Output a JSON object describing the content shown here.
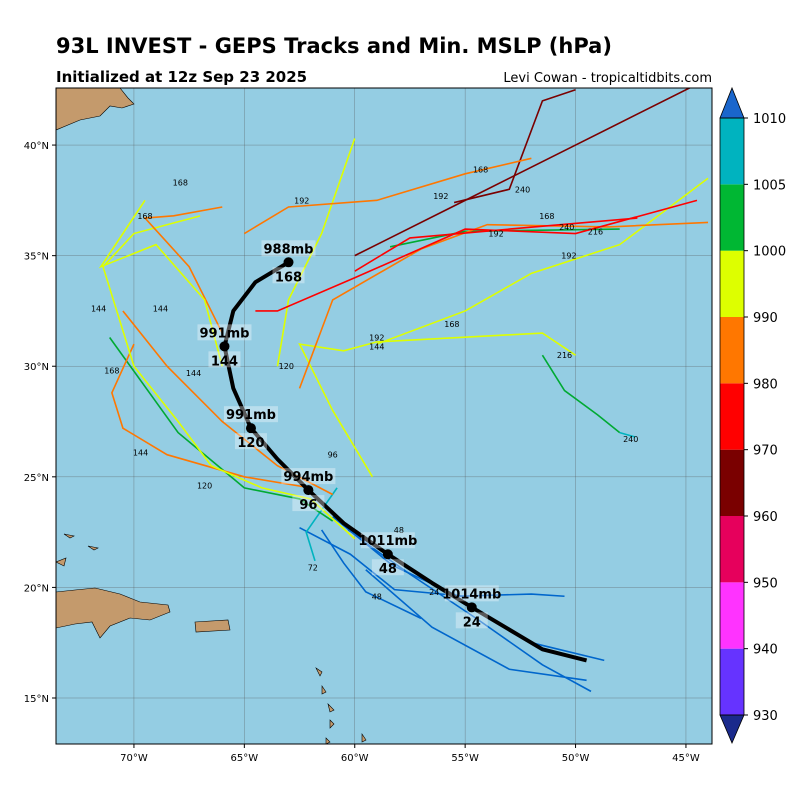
{
  "chart_data": {
    "type": "map",
    "title": "93L INVEST - GEPS Tracks and Min. MSLP (hPa)",
    "subtitle": "Initialized at 12z Sep 23 2025",
    "credit": "Levi Cowan - tropicaltidbits.com",
    "xlim": [
      -73.53,
      -43.82
    ],
    "ylim": [
      12.92,
      42.58
    ],
    "xticks": [
      {
        "value": -70,
        "label": "70°W"
      },
      {
        "value": -65,
        "label": "65°W"
      },
      {
        "value": -60,
        "label": "60°W"
      },
      {
        "value": -55,
        "label": "55°W"
      },
      {
        "value": -50,
        "label": "50°W"
      },
      {
        "value": -45,
        "label": "45°W"
      }
    ],
    "yticks": [
      {
        "value": 15,
        "label": "15°N"
      },
      {
        "value": 20,
        "label": "20°N"
      },
      {
        "value": 25,
        "label": "25°N"
      },
      {
        "value": 30,
        "label": "30°N"
      },
      {
        "value": 35,
        "label": "35°N"
      },
      {
        "value": 40,
        "label": "40°N"
      }
    ],
    "grid": true,
    "colorbar": {
      "bounds": [
        930,
        940,
        950,
        960,
        970,
        980,
        990,
        1000,
        1005,
        1010
      ],
      "colors": [
        "#6633ff",
        "#ff33ff",
        "#e6005c",
        "#7a0000",
        "#ff0000",
        "#ff7700",
        "#ddff00",
        "#00b733",
        "#00b3bf"
      ],
      "under_color": "#1a2a8c",
      "over_color": "#1a66cc",
      "ticks": [
        930,
        940,
        950,
        960,
        970,
        980,
        990,
        1000,
        1005,
        1010
      ]
    },
    "tracks": [
      {
        "color": "#0066cc",
        "lon": [
          -49.3,
          -51.5,
          -54.5,
          -57.5,
          -59.5
        ],
        "lat": [
          15.3,
          16.5,
          18.6,
          20.6,
          22.0
        ]
      },
      {
        "color": "#0066cc",
        "lon": [
          -48.7,
          -52,
          -55,
          -58,
          -60.3
        ],
        "lat": [
          16.7,
          17.5,
          19.3,
          21.2,
          22.6
        ]
      },
      {
        "color": "#0066cc",
        "lon": [
          -50.5,
          -52,
          -55.3,
          -58.3,
          -61
        ],
        "lat": [
          19.6,
          19.7,
          19.6,
          21.0,
          23.2
        ]
      },
      {
        "color": "#0066cc",
        "lon": [
          -49.5,
          -53,
          -56.5,
          -59.5
        ],
        "lat": [
          15.8,
          16.3,
          18.2,
          20.8
        ]
      },
      {
        "color": "#0066cc",
        "lon": [
          -55,
          -58.2,
          -60.2,
          -62.5
        ],
        "lat": [
          19.6,
          19.9,
          21.5,
          22.7
        ]
      },
      {
        "color": "#0066cc",
        "lon": [
          -57,
          -59.5,
          -60.5,
          -61.5
        ],
        "lat": [
          18.6,
          19.8,
          21.1,
          22.6
        ]
      },
      {
        "color": "#00b3bf",
        "lon": [
          -61.8,
          -62.2,
          -60.8
        ],
        "lat": [
          21.2,
          22.5,
          24.5
        ]
      },
      {
        "color": "#00aa33",
        "lon": [
          -61,
          -62.5,
          -65,
          -68,
          -71.1
        ],
        "lat": [
          23,
          24,
          24.5,
          27,
          31.3
        ]
      },
      {
        "color": "#00aa33",
        "lon": [
          -58.4,
          -55,
          -48
        ],
        "lat": [
          35.4,
          36.1,
          36.2
        ]
      },
      {
        "color": "#00aa33",
        "lon": [
          -51.5,
          -50.5,
          -49,
          -48
        ],
        "lat": [
          30.5,
          28.9,
          27.8,
          27
        ]
      },
      {
        "color": "#00b3bf",
        "lon": [
          -48,
          -47.3
        ],
        "lat": [
          27,
          26.8
        ]
      },
      {
        "color": "#ff7700",
        "lon": [
          -62,
          -65,
          -68.5,
          -70.5,
          -71,
          -70
        ],
        "lat": [
          24.5,
          25,
          26,
          27.2,
          28.8,
          31
        ]
      },
      {
        "color": "#ff7700",
        "lon": [
          -61,
          -63.5,
          -66,
          -68.5,
          -70.5
        ],
        "lat": [
          24.2,
          25.5,
          27.5,
          30,
          32.5
        ]
      },
      {
        "color": "#ddff00",
        "lon": [
          -60,
          -62,
          -64.2,
          -66.5,
          -68,
          -70,
          -71.4,
          -70,
          -67
        ],
        "lat": [
          22.2,
          24,
          24.5,
          25.5,
          27.5,
          30,
          34.5,
          36,
          36.8
        ]
      },
      {
        "color": "#ddff00",
        "lon": [
          -59.2,
          -61,
          -62.5,
          -60.5,
          -59,
          -51.5,
          -50
        ],
        "lat": [
          25,
          28,
          31,
          30.7,
          31.1,
          31.5,
          30.5
        ]
      },
      {
        "color": "#ddff00",
        "lon": [
          -59,
          -55,
          -52,
          -48,
          -44
        ],
        "lat": [
          31,
          32.5,
          34.2,
          35.5,
          38.5
        ]
      },
      {
        "color": "#ddff00",
        "lon": [
          -63.5,
          -63,
          -61.5,
          -60
        ],
        "lat": [
          30,
          33,
          36,
          40.3
        ]
      },
      {
        "color": "#ff7700",
        "lon": [
          -62.5,
          -61,
          -57,
          -54,
          -48.5,
          -44
        ],
        "lat": [
          29,
          33,
          35.3,
          36.4,
          36.3,
          36.5
        ]
      },
      {
        "color": "#ff0000",
        "lon": [
          -64.5,
          -63.5,
          -60,
          -55,
          -50,
          -44.5
        ],
        "lat": [
          32.5,
          32.5,
          34,
          36.2,
          36,
          37.5
        ]
      },
      {
        "color": "#ff0000",
        "lon": [
          -60,
          -57.5,
          -53,
          -47.2
        ],
        "lat": [
          34.3,
          35.8,
          36.2,
          36.7
        ]
      },
      {
        "color": "#7a0000",
        "lon": [
          -60,
          -55,
          -50,
          -44
        ],
        "lat": [
          35,
          37.5,
          40,
          43
        ]
      },
      {
        "color": "#7a0000",
        "lon": [
          -55.5,
          -53,
          -51.5,
          -50
        ],
        "lat": [
          37.4,
          38,
          42,
          42.5
        ]
      },
      {
        "color": "#ff7700",
        "lon": [
          -65,
          -63,
          -59,
          -55,
          -52
        ],
        "lat": [
          36,
          37.2,
          37.5,
          38.7,
          39.4
        ]
      },
      {
        "color": "#ff7700",
        "lon": [
          -66,
          -67.5,
          -69.5,
          -68.2,
          -66
        ],
        "lat": [
          31.5,
          34.5,
          36.7,
          36.8,
          37.2
        ]
      },
      {
        "color": "#ddff00",
        "lon": [
          -66,
          -66.8,
          -69,
          -71.5,
          -69.5
        ],
        "lat": [
          30,
          33,
          35.5,
          34.5,
          37.5
        ]
      }
    ],
    "track_labels": [
      {
        "text": "240",
        "lon": -47.5,
        "lat": 26.7
      },
      {
        "text": "216",
        "lon": -50.5,
        "lat": 30.5
      },
      {
        "text": "168",
        "lon": -55.6,
        "lat": 31.9
      },
      {
        "text": "192",
        "lon": -59,
        "lat": 31.3
      },
      {
        "text": "144",
        "lon": -59,
        "lat": 30.9
      },
      {
        "text": "240",
        "lon": -52.4,
        "lat": 38.0
      },
      {
        "text": "192",
        "lon": -56.1,
        "lat": 37.7
      },
      {
        "text": "168",
        "lon": -54.3,
        "lat": 38.9
      },
      {
        "text": "168",
        "lon": -51.3,
        "lat": 36.8
      },
      {
        "text": "240",
        "lon": -50.4,
        "lat": 36.3
      },
      {
        "text": "216",
        "lon": -49.1,
        "lat": 36.1
      },
      {
        "text": "192",
        "lon": -50.3,
        "lat": 35.0
      },
      {
        "text": "192",
        "lon": -53.6,
        "lat": 36.0
      },
      {
        "text": "168",
        "lon": -67.9,
        "lat": 38.3
      },
      {
        "text": "192",
        "lon": -62.4,
        "lat": 37.5
      },
      {
        "text": "168",
        "lon": -69.5,
        "lat": 36.8
      },
      {
        "text": "144",
        "lon": -71.6,
        "lat": 32.6
      },
      {
        "text": "144",
        "lon": -68.8,
        "lat": 32.6
      },
      {
        "text": "168",
        "lon": -71,
        "lat": 29.8
      },
      {
        "text": "144",
        "lon": -67.3,
        "lat": 29.7
      },
      {
        "text": "144",
        "lon": -69.7,
        "lat": 26.1
      },
      {
        "text": "120",
        "lon": -66.8,
        "lat": 24.6
      },
      {
        "text": "120",
        "lon": -63.1,
        "lat": 30.0
      },
      {
        "text": "96",
        "lon": -61,
        "lat": 26.0
      },
      {
        "text": "72",
        "lon": -61.9,
        "lat": 20.9
      },
      {
        "text": "48",
        "lon": -59,
        "lat": 19.6
      },
      {
        "text": "48",
        "lon": -58,
        "lat": 22.6
      },
      {
        "text": "24",
        "lon": -56.4,
        "lat": 19.8
      }
    ],
    "mean_track": {
      "lon": [
        -49.5,
        -51.5,
        -54.7,
        -56.5,
        -58.5,
        -60.5,
        -62.1,
        -63.5,
        -64.7,
        -65.5,
        -65.9,
        -65.5,
        -64.5,
        -63
      ],
      "lat": [
        16.7,
        17.2,
        19.1,
        20.2,
        21.5,
        22.9,
        24.4,
        25.8,
        27.2,
        29,
        30.9,
        32.5,
        33.8,
        34.7
      ]
    },
    "mean_points": [
      {
        "lon": -54.7,
        "lat": 19.1,
        "mslp": "1014mb",
        "hour": 24
      },
      {
        "lon": -58.5,
        "lat": 21.5,
        "mslp": "1011mb",
        "hour": 48
      },
      {
        "lon": -62.1,
        "lat": 24.4,
        "mslp": "994mb",
        "hour": 96
      },
      {
        "lon": -64.7,
        "lat": 27.2,
        "mslp": "991mb",
        "hour": 120
      },
      {
        "lon": -65.9,
        "lat": 30.9,
        "mslp": "991mb",
        "hour": 144
      },
      {
        "lon": -63,
        "lat": 34.7,
        "mslp": "988mb",
        "hour": 168
      }
    ]
  }
}
